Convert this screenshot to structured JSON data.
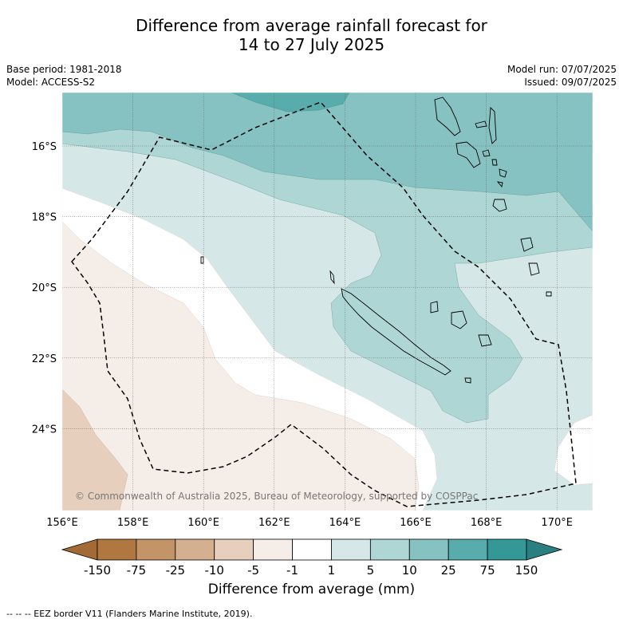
{
  "title_line1": "Difference from average rainfall forecast for",
  "title_line2": "14 to 27 July 2025",
  "base_period": "Base period: 1981-2018",
  "model": "Model: ACCESS-S2",
  "model_run": "Model run: 07/07/2025",
  "issued": "Issued: 09/07/2025",
  "copyright": "© Commonwealth of Australia 2025, Bureau of Meteorology, supported by COSPPac",
  "colorbar": {
    "label": "Difference from average (mm)",
    "ticks": [
      "-150",
      "-75",
      "-25",
      "-10",
      "-5",
      "-1",
      "1",
      "5",
      "10",
      "25",
      "75",
      "150"
    ],
    "colors": [
      "#a36a35",
      "#b07840",
      "#c29468",
      "#d4b090",
      "#e6d0bd",
      "#f5ede8",
      "#ffffff",
      "#d5e8e7",
      "#aed6d5",
      "#86c2c1",
      "#58acab",
      "#349996",
      "#2a8080"
    ]
  },
  "map": {
    "lon_labels": [
      "156°E",
      "158°E",
      "160°E",
      "162°E",
      "164°E",
      "166°E",
      "168°E",
      "170°E"
    ],
    "lat_labels": [
      "16°S",
      "18°S",
      "20°S",
      "22°S",
      "24°S"
    ]
  },
  "footer": "-- -- -- EEZ border V11 (Flanders Marine Institute, 2019)."
}
